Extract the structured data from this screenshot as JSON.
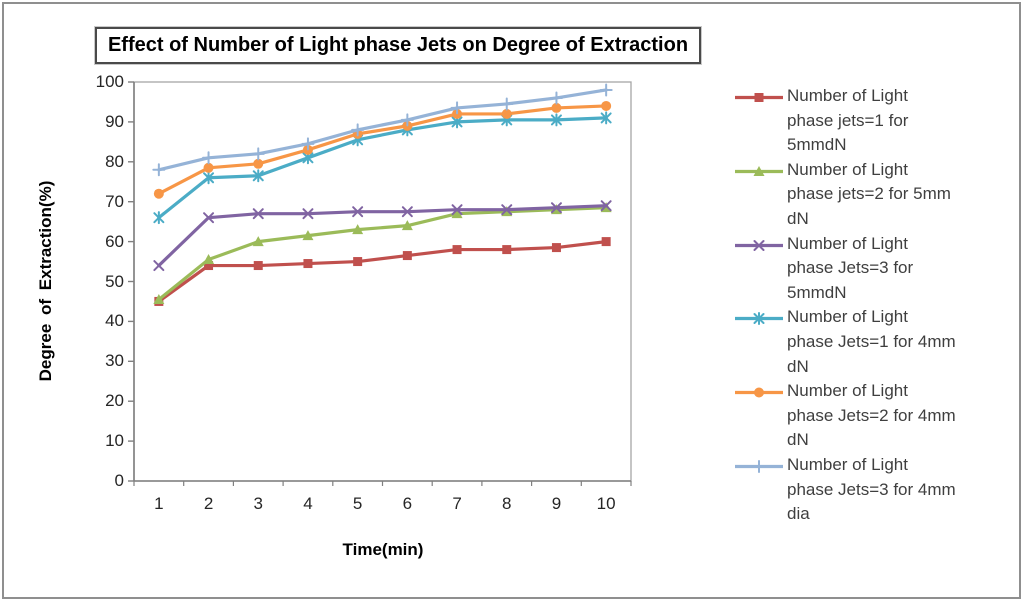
{
  "window": {
    "background": "#ffffff",
    "frame_border_color": "#8f8f8f"
  },
  "chart_data": {
    "type": "line",
    "title": "Effect of Number of Light phase Jets on Degree of Extraction",
    "xlabel": "Time(min)",
    "ylabel": "Degree of Extraction(%)",
    "grid": false,
    "legend_position": "right",
    "x": [
      1,
      2,
      3,
      4,
      5,
      6,
      7,
      8,
      9,
      10
    ],
    "ylim": [
      0,
      100
    ],
    "yticks": [
      0,
      10,
      20,
      30,
      40,
      50,
      60,
      70,
      80,
      90,
      100
    ],
    "axis_color": "#808080",
    "plot_border_color": "#a6a6a6",
    "tick_label_color": "#262626",
    "legend_text_color": "#3f3f3f",
    "series": [
      {
        "name": "Number of Light phase jets=1 for 5mmdN",
        "legend_lines": [
          "Number of Light",
          "phase jets=1 for",
          "5mmdN"
        ],
        "color": "#C0504D",
        "marker": "square",
        "values": [
          45,
          54,
          54,
          54.5,
          55,
          56.5,
          58,
          58,
          58.5,
          60
        ]
      },
      {
        "name": "Number of Light phase jets=2 for 5mm dN",
        "legend_lines": [
          "Number of Light",
          "phase jets=2 for 5mm",
          "dN"
        ],
        "color": "#9BBB59",
        "marker": "triangle",
        "values": [
          45.5,
          55.5,
          60,
          61.5,
          63,
          64,
          67,
          67.5,
          68,
          68.5
        ]
      },
      {
        "name": "Number of Light phase Jets=3 for 5mmdN",
        "legend_lines": [
          "Number of Light",
          "phase Jets=3 for",
          "5mmdN"
        ],
        "color": "#8064A2",
        "marker": "x",
        "values": [
          54,
          66,
          67,
          67,
          67.5,
          67.5,
          68,
          68,
          68.5,
          69
        ]
      },
      {
        "name": "Number of Light phase Jets=1 for 4mm dN",
        "legend_lines": [
          "Number of Light",
          "phase Jets=1 for 4mm",
          "dN"
        ],
        "color": "#4BACC6",
        "marker": "asterisk",
        "values": [
          66,
          76,
          76.5,
          81,
          85.5,
          88,
          90,
          90.5,
          90.5,
          91
        ]
      },
      {
        "name": "Number of Light phase Jets=2 for 4mm dN",
        "legend_lines": [
          "Number of Light",
          "phase Jets=2 for 4mm",
          "dN"
        ],
        "color": "#F79646",
        "marker": "circle",
        "values": [
          72,
          78.5,
          79.5,
          83,
          87,
          89,
          92,
          92,
          93.5,
          94
        ]
      },
      {
        "name": "Number of Light phase Jets=3 for 4mm dia",
        "legend_lines": [
          "Number of Light",
          "phase Jets=3 for 4mm",
          "dia"
        ],
        "color": "#95B3D7",
        "marker": "plus",
        "values": [
          78,
          81,
          82,
          84.5,
          88,
          90.5,
          93.5,
          94.5,
          96,
          98
        ]
      }
    ]
  }
}
